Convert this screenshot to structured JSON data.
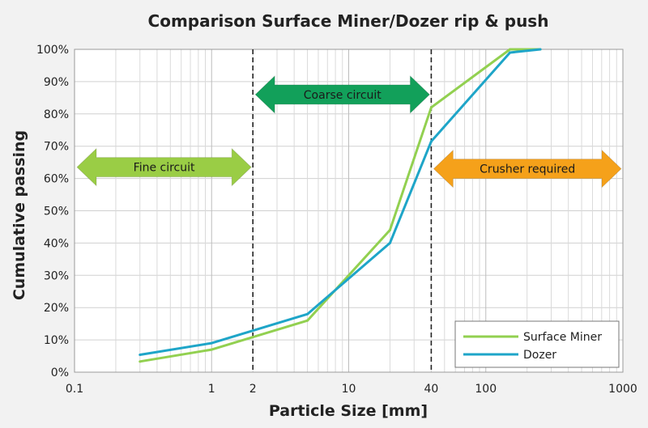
{
  "chart_data": {
    "type": "line",
    "title": "Comparison Surface Miner/Dozer rip & push",
    "xlabel": "Particle Size [mm]",
    "ylabel": "Cumulative passing",
    "x_scale": "log",
    "xlim": [
      0.1,
      1000
    ],
    "ylim": [
      0,
      100
    ],
    "x_ticks": [
      "0.1",
      "1",
      "2",
      "10",
      "40",
      "100",
      "1000"
    ],
    "x_tick_values": [
      0.1,
      1,
      2,
      10,
      40,
      100,
      1000
    ],
    "y_ticks": [
      "0%",
      "10%",
      "20%",
      "30%",
      "40%",
      "50%",
      "60%",
      "70%",
      "80%",
      "90%",
      "100%"
    ],
    "y_tick_values": [
      0,
      10,
      20,
      30,
      40,
      50,
      60,
      70,
      80,
      90,
      100
    ],
    "grid": true,
    "legend_position": "bottom-right",
    "vlines": [
      2,
      40
    ],
    "series": [
      {
        "name": "Surface Miner",
        "color": "#92d050",
        "x": [
          0.3,
          1,
          5,
          20,
          40,
          150,
          250
        ],
        "y": [
          3.3,
          7,
          16,
          44,
          82,
          100,
          100
        ]
      },
      {
        "name": "Dozer",
        "color": "#1ea5c8",
        "x": [
          0.3,
          1,
          5,
          20,
          40,
          150,
          250
        ],
        "y": [
          5.4,
          9,
          18,
          40,
          71.5,
          99,
          100
        ]
      }
    ],
    "annotations": [
      {
        "label": "Fine circuit",
        "x_from": 0.1,
        "x_to": 2,
        "y": 63.5,
        "color": "#9acd45"
      },
      {
        "label": "Coarse circuit",
        "x_from": 2,
        "x_to": 40,
        "y": 86,
        "color": "#12a05a"
      },
      {
        "label": "Crusher required",
        "x_from": 40,
        "x_to": 1000,
        "y": 63,
        "color": "#f5a11a"
      }
    ]
  }
}
